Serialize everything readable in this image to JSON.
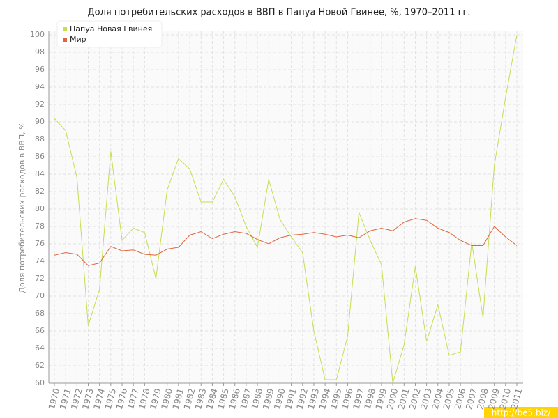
{
  "chart_data": {
    "type": "line",
    "title": "Доля потребительских расходов в ВВП в Папуа Новой Гвинее, %, 1970–2011 гг.",
    "y_label": "Доля потребительских расходов в ВВП, %",
    "watermark": "http://be5.biz/",
    "categories": [
      "1970",
      "1971",
      "1972",
      "1973",
      "1974",
      "1975",
      "1976",
      "1977",
      "1978",
      "1979",
      "1980",
      "1981",
      "1982",
      "1983",
      "1984",
      "1985",
      "1986",
      "1987",
      "1988",
      "1989",
      "1990",
      "1991",
      "1992",
      "1993",
      "1994",
      "1995",
      "1996",
      "1997",
      "1998",
      "1999",
      "2000",
      "2001",
      "2002",
      "2003",
      "2004",
      "2005",
      "2006",
      "2007",
      "2008",
      "2009",
      "2010",
      "2011"
    ],
    "series": [
      {
        "name": "Папуа Новая Гвинея",
        "color": "#c5de52",
        "values": [
          90.4,
          89.0,
          83.6,
          66.6,
          70.8,
          86.6,
          76.4,
          77.8,
          77.3,
          72.0,
          82.2,
          85.8,
          84.6,
          80.8,
          80.8,
          83.4,
          81.4,
          78.0,
          75.6,
          83.4,
          78.8,
          76.8,
          75.0,
          66.0,
          60.4,
          60.4,
          65.4,
          79.6,
          76.4,
          73.6,
          60.0,
          64.4,
          73.4,
          64.8,
          69.0,
          63.2,
          63.6,
          76.2,
          67.5,
          85.0,
          92.8,
          100
        ]
      },
      {
        "name": "Мир",
        "color": "#e0643c",
        "values": [
          74.7,
          75.0,
          74.8,
          73.5,
          73.8,
          75.7,
          75.2,
          75.3,
          74.8,
          74.7,
          75.4,
          75.6,
          77.0,
          77.4,
          76.6,
          77.1,
          77.4,
          77.2,
          76.5,
          76.0,
          76.7,
          77.0,
          77.1,
          77.3,
          77.1,
          76.8,
          77.0,
          76.7,
          77.5,
          77.8,
          77.5,
          78.5,
          78.9,
          78.7,
          77.8,
          77.3,
          76.4,
          75.8,
          75.8,
          78.0,
          76.8,
          75.8
        ]
      }
    ],
    "ylim": [
      60,
      100
    ],
    "yticks": [
      60,
      62,
      64,
      66,
      68,
      70,
      72,
      74,
      76,
      78,
      80,
      82,
      84,
      86,
      88,
      90,
      92,
      94,
      96,
      98,
      100
    ],
    "grid": true,
    "legend": "top-left"
  }
}
